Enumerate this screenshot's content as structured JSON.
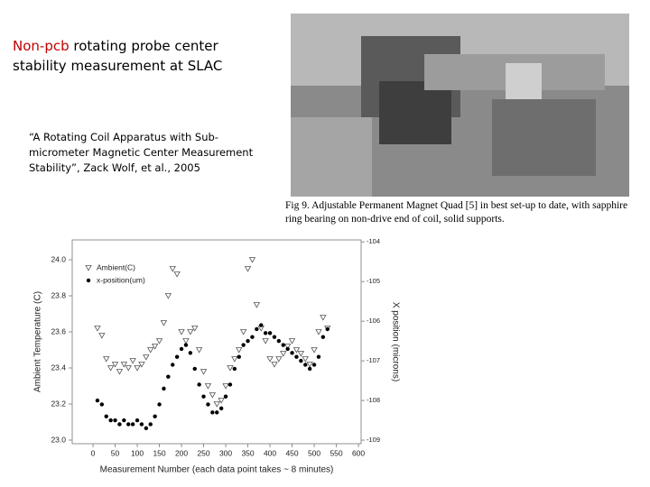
{
  "slide": {
    "title": [
      "Non-pcb",
      "rotating probe center stability measurement at SLAC"
    ],
    "citation": "“A Rotating Coil Apparatus with Sub-micrometer Magnetic Center Measurement Stability”, Zack Wolf, et al., 2005",
    "caption": "Fig 9.  Adjustable Permanent Magnet Quad [5] in best set-up to date, with sapphire ring bearing on non-drive end of coil, solid supports."
  },
  "chart_data": {
    "type": "scatter",
    "xlabel": "Measurement Number (each data point takes ~ 8 minutes)",
    "ylabel": "Ambient Temperature (C)",
    "y2label": "X position (microns)",
    "x": [
      10,
      20,
      30,
      40,
      50,
      60,
      70,
      80,
      90,
      100,
      110,
      120,
      130,
      140,
      150,
      160,
      170,
      180,
      190,
      200,
      210,
      220,
      230,
      240,
      250,
      260,
      270,
      280,
      290,
      300,
      310,
      320,
      330,
      340,
      350,
      360,
      370,
      380,
      390,
      400,
      410,
      420,
      430,
      440,
      450,
      460,
      470,
      480,
      490,
      500,
      510,
      520,
      530
    ],
    "series": [
      {
        "name": "Ambient(C)",
        "color": "#555555",
        "marker": "triangle",
        "values": [
          23.62,
          23.58,
          23.45,
          23.4,
          23.42,
          23.38,
          23.42,
          23.4,
          23.44,
          23.4,
          23.42,
          23.46,
          23.5,
          23.52,
          23.55,
          23.65,
          23.8,
          23.95,
          23.92,
          23.6,
          23.55,
          23.6,
          23.62,
          23.5,
          23.38,
          23.3,
          23.25,
          23.2,
          23.22,
          23.3,
          23.4,
          23.45,
          23.5,
          23.6,
          23.95,
          24.0,
          23.75,
          23.62,
          23.55,
          23.45,
          23.42,
          23.45,
          23.48,
          23.52,
          23.55,
          23.5,
          23.48,
          23.45,
          23.42,
          23.5,
          23.6,
          23.68,
          23.62
        ]
      },
      {
        "name": "x-position(um)",
        "color": "#000000",
        "marker": "circle",
        "axis": "y2",
        "values": [
          -108.0,
          -108.1,
          -108.4,
          -108.5,
          -108.5,
          -108.6,
          -108.5,
          -108.6,
          -108.6,
          -108.5,
          -108.6,
          -108.7,
          -108.6,
          -108.4,
          -108.1,
          -107.7,
          -107.4,
          -107.1,
          -106.9,
          -106.7,
          -106.6,
          -106.8,
          -107.2,
          -107.6,
          -107.9,
          -108.1,
          -108.3,
          -108.3,
          -108.2,
          -107.9,
          -107.6,
          -107.2,
          -106.9,
          -106.6,
          -106.5,
          -106.4,
          -106.2,
          -106.1,
          -106.3,
          -106.3,
          -106.4,
          -106.5,
          -106.6,
          -106.7,
          -106.8,
          -106.9,
          -107.0,
          -107.1,
          -107.2,
          -107.1,
          -106.9,
          -106.4,
          -106.2
        ]
      }
    ],
    "xlim": [
      -47,
      606
    ],
    "xticks": [
      0,
      50,
      100,
      150,
      200,
      250,
      300,
      350,
      400,
      450,
      500,
      550,
      600
    ],
    "ylim": [
      22.98,
      24.11
    ],
    "yticks": [
      {
        "value": 23,
        "label": "23.0"
      },
      23.2,
      23.4,
      23.6,
      23.8,
      {
        "value": 24,
        "label": "24.0"
      }
    ],
    "y2lim": [
      -109.09,
      -103.95
    ],
    "y2ticks": [
      -109,
      -108,
      -107,
      -106,
      -105,
      -104
    ],
    "legend": "upper left"
  }
}
